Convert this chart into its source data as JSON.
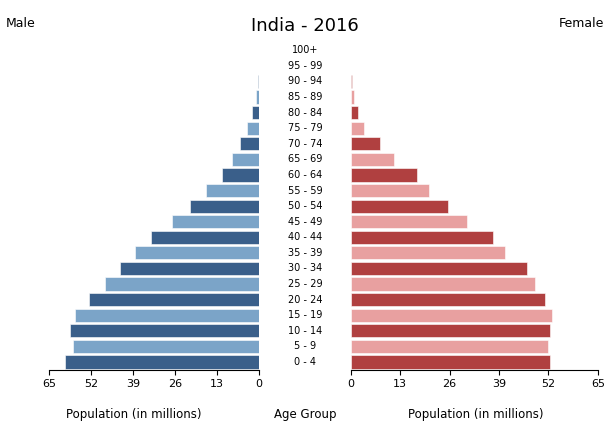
{
  "title": "India - 2016",
  "title_left": "Male",
  "title_right": "Female",
  "xlabel_left": "Population (in millions)",
  "xlabel_center": "Age Group",
  "xlabel_right": "Population (in millions)",
  "age_groups": [
    "0 - 4",
    "5 - 9",
    "10 - 14",
    "15 - 19",
    "20 - 24",
    "25 - 29",
    "30 - 34",
    "35 - 39",
    "40 - 44",
    "45 - 49",
    "50 - 54",
    "55 - 59",
    "60 - 64",
    "65 - 69",
    "70 - 74",
    "75 - 79",
    "80 - 84",
    "85 - 89",
    "90 - 94",
    "95 - 99",
    "100+"
  ],
  "male_values": [
    60.0,
    57.5,
    58.5,
    57.0,
    52.5,
    47.5,
    43.0,
    38.5,
    33.5,
    27.0,
    21.5,
    16.5,
    11.5,
    8.5,
    5.8,
    3.8,
    2.3,
    1.1,
    0.45,
    0.18,
    0.05
  ],
  "female_values": [
    52.5,
    52.0,
    52.5,
    53.0,
    51.0,
    48.5,
    46.5,
    40.5,
    37.5,
    30.5,
    25.5,
    20.5,
    17.5,
    11.5,
    7.8,
    3.5,
    1.9,
    0.85,
    0.35,
    0.12,
    0.04
  ],
  "male_colors": [
    "#3a5f8a",
    "#7ba4c8",
    "#3a5f8a",
    "#7ba4c8",
    "#3a5f8a",
    "#7ba4c8",
    "#3a5f8a",
    "#7ba4c8",
    "#3a5f8a",
    "#7ba4c8",
    "#3a5f8a",
    "#7ba4c8",
    "#3a5f8a",
    "#7ba4c8",
    "#3a5f8a",
    "#7ba4c8",
    "#3a5f8a",
    "#7ba4c8",
    "#3a5f8a",
    "#7ba4c8",
    "#3a5f8a"
  ],
  "female_colors": [
    "#b04040",
    "#e8a0a0",
    "#b04040",
    "#e8a0a0",
    "#b04040",
    "#e8a0a0",
    "#b04040",
    "#e8a0a0",
    "#b04040",
    "#e8a0a0",
    "#b04040",
    "#e8a0a0",
    "#b04040",
    "#e8a0a0",
    "#b04040",
    "#e8a0a0",
    "#b04040",
    "#e8a0a0",
    "#b04040",
    "#e8a0a0",
    "#b04040"
  ],
  "background_color": "#ffffff",
  "xlim": 65,
  "xticks": [
    0,
    13,
    26,
    39,
    52,
    65
  ]
}
